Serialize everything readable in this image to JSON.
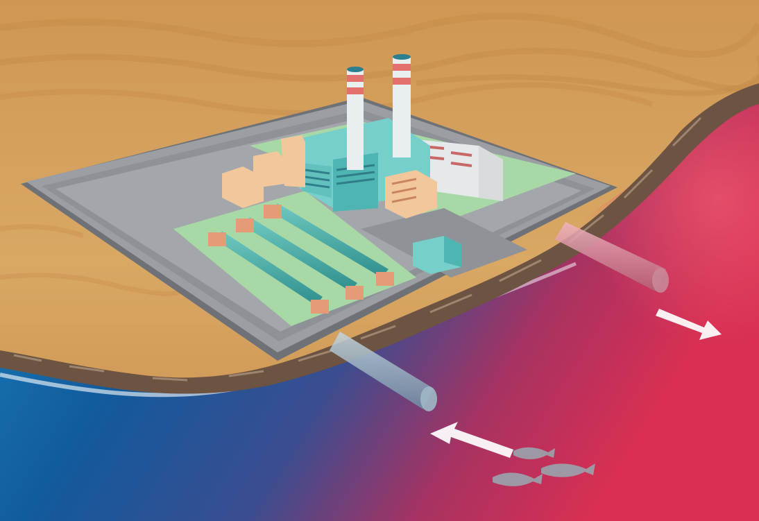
{
  "colors": {
    "sand_light": "#d9a865",
    "sand_dark": "#b97a3c",
    "sea_cold": "#1b78b4",
    "sea_deep": "#0b3f7a",
    "sea_warm": "#cf2f55",
    "sea_warm_light": "#e4566f",
    "platform_gray": "#9b9fa3",
    "platform_edge": "#6e7276",
    "lawn_green": "#a8d8a5",
    "building_teal": "#76cfca",
    "building_peach": "#f2c79b",
    "chimney_white": "#e9eef0",
    "chimney_stripe": "#e36f6f",
    "rock_brown": "#6d5442",
    "foam_white": "#ffffff",
    "fish_gray": "#9aa4ad"
  },
  "elements": {
    "intake_pipe": "cold-water-intake-pipe",
    "outflow_pipe": "warm-water-outflow-pipe",
    "intake_arrow": "arrow-left-icon",
    "outflow_arrow": "arrow-right-icon",
    "fish": "fish-icon"
  }
}
